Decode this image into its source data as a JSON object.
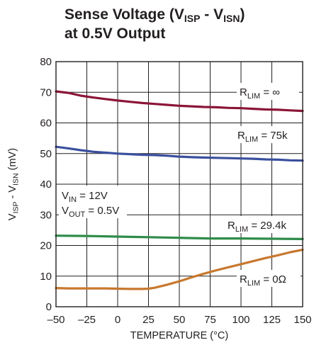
{
  "chart_data": {
    "type": "line",
    "title_main": "Sense Voltage (V",
    "title_sub1": "ISP",
    "title_mid": " - V",
    "title_sub2": "ISN",
    "title_end": ")",
    "title_line2": "at 0.5V Output",
    "xlabel": "TEMPERATURE (°C)",
    "ylabel": {
      "v1": "V",
      "s1": "ISP",
      "mid": " - V",
      "s2": "ISN",
      "unit": " (mV)"
    },
    "xlim": [
      -50,
      150
    ],
    "ylim": [
      0,
      80
    ],
    "x_ticks": [
      -50,
      -25,
      0,
      25,
      50,
      75,
      100,
      125,
      150
    ],
    "x_tick_labels": [
      "–50",
      "–25",
      "0",
      "25",
      "50",
      "75",
      "100",
      "125",
      "150"
    ],
    "y_ticks": [
      0,
      10,
      20,
      30,
      40,
      50,
      60,
      70,
      80
    ],
    "y_tick_labels": [
      "0",
      "10",
      "20",
      "30",
      "40",
      "50",
      "60",
      "70",
      "80"
    ],
    "grid": true,
    "series": [
      {
        "color": "#8b1538",
        "x": [
          -50,
          -40,
          -30,
          -20,
          -10,
          0,
          10,
          20,
          30,
          40,
          50,
          60,
          70,
          80,
          90,
          100,
          110,
          120,
          130,
          140,
          150
        ],
        "y": [
          70.3,
          69.8,
          68.9,
          68.3,
          67.8,
          67.3,
          66.9,
          66.5,
          66.2,
          65.9,
          65.6,
          65.4,
          65.2,
          65.1,
          64.9,
          64.8,
          64.6,
          64.4,
          64.3,
          64.1,
          63.9
        ]
      },
      {
        "color": "#3a4f9e",
        "x": [
          -50,
          -40,
          -30,
          -20,
          -10,
          0,
          10,
          20,
          30,
          40,
          50,
          60,
          70,
          80,
          90,
          100,
          110,
          120,
          130,
          140,
          150
        ],
        "y": [
          52.2,
          51.7,
          51.1,
          50.6,
          50.3,
          50.0,
          49.8,
          49.6,
          49.5,
          49.3,
          49.0,
          48.8,
          48.7,
          48.6,
          48.5,
          48.4,
          48.3,
          48.1,
          48.0,
          47.8,
          47.7
        ]
      },
      {
        "color": "#2e8b4a",
        "x": [
          -50,
          -25,
          0,
          25,
          50,
          75,
          100,
          125,
          150
        ],
        "y": [
          23.2,
          23.1,
          22.9,
          22.7,
          22.5,
          22.3,
          22.3,
          22.2,
          22.1
        ]
      },
      {
        "color": "#c7782e",
        "x": [
          -50,
          -40,
          -30,
          -20,
          -10,
          0,
          10,
          20,
          25,
          30,
          40,
          50,
          60,
          70,
          80,
          90,
          100,
          110,
          120,
          130,
          140,
          150
        ],
        "y": [
          6.1,
          6.0,
          6.0,
          6.0,
          6.0,
          5.9,
          5.8,
          5.8,
          5.9,
          6.2,
          7.2,
          8.3,
          9.6,
          10.8,
          11.9,
          12.9,
          13.9,
          14.9,
          15.9,
          16.8,
          17.8,
          18.6
        ]
      }
    ],
    "annotations": {
      "r75k": {
        "pre": "R",
        "sub": "LIM",
        "post": " = 75k"
      },
      "rinf": {
        "pre": "R",
        "sub": "LIM",
        "post": " = ∞"
      },
      "r29": {
        "pre": "R",
        "sub": "LIM",
        "post": " = 29.4k"
      },
      "r0": {
        "pre": "R",
        "sub": "LIM",
        "post": " = 0Ω"
      },
      "vin": {
        "pre": "V",
        "sub": "IN",
        "post": " = 12V"
      },
      "vout": {
        "pre": "V",
        "sub": "OUT",
        "post": " = 0.5V"
      }
    }
  }
}
